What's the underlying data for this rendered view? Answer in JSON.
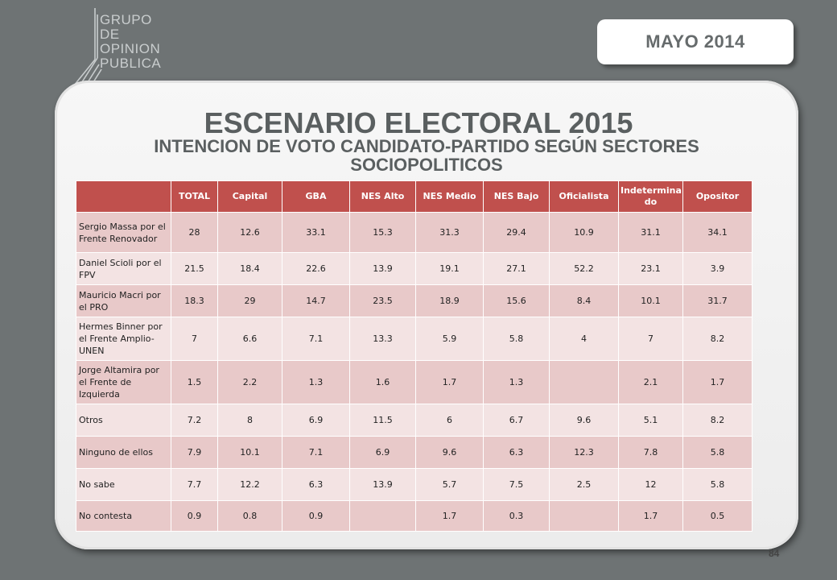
{
  "logo": {
    "lines": [
      "GRUPO",
      "DE",
      "OPINION",
      "PUBLICA"
    ]
  },
  "date_badge": "MAYO  2014",
  "title": "ESCENARIO ELECTORAL 2015",
  "subtitle": "INTENCION DE VOTO CANDIDATO-PARTIDO SEGÚN SECTORES SOCIOPOLITICOS",
  "table": {
    "headers": [
      "",
      "TOTAL",
      "Capital",
      "GBA",
      "NES Alto",
      "NES Medio",
      "NES Bajo",
      "Oficialista",
      "Indetermina do",
      "Opositor"
    ],
    "rows": [
      [
        "Sergio Massa por el Frente Renovador",
        "28",
        "12.6",
        "33.1",
        "15.3",
        "31.3",
        "29.4",
        "10.9",
        "31.1",
        "34.1"
      ],
      [
        "Daniel Scioli por el FPV",
        "21.5",
        "18.4",
        "22.6",
        "13.9",
        "19.1",
        "27.1",
        "52.2",
        "23.1",
        "3.9"
      ],
      [
        "Mauricio Macri por el PRO",
        "18.3",
        "29",
        "14.7",
        "23.5",
        "18.9",
        "15.6",
        "8.4",
        "10.1",
        "31.7"
      ],
      [
        "Hermes Binner por el Frente Amplio-UNEN",
        "7",
        "6.6",
        "7.1",
        "13.3",
        "5.9",
        "5.8",
        "4",
        "7",
        "8.2"
      ],
      [
        "Jorge Altamira por el Frente de Izquierda",
        "1.5",
        "2.2",
        "1.3",
        "1.6",
        "1.7",
        "1.3",
        "",
        "2.1",
        "1.7"
      ],
      [
        "Otros",
        "7.2",
        "8",
        "6.9",
        "11.5",
        "6",
        "6.7",
        "9.6",
        "5.1",
        "8.2"
      ],
      [
        "Ninguno de ellos",
        "7.9",
        "10.1",
        "7.1",
        "6.9",
        "9.6",
        "6.3",
        "12.3",
        "7.8",
        "5.8"
      ],
      [
        "No sabe",
        "7.7",
        "12.2",
        "6.3",
        "13.9",
        "5.7",
        "7.5",
        "2.5",
        "12",
        "5.8"
      ],
      [
        "No contesta",
        "0.9",
        "0.8",
        "0.9",
        "",
        "1.7",
        "0.3",
        "",
        "1.7",
        "0.5"
      ]
    ]
  },
  "page_number": "84"
}
